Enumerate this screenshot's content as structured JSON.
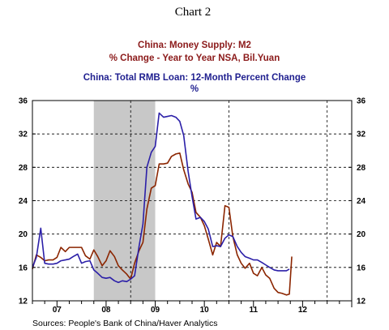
{
  "chart_data": {
    "type": "line",
    "title": "Chart 2",
    "series_titles": [
      {
        "text": "China: Money Supply: M2",
        "color": "#8b1a1a"
      },
      {
        "text": "% Change - Year to Year    NSA, Bil.Yuan",
        "color": "#8b1a1a"
      },
      {
        "text": "China: Total RMB Loan: 12-Month Percent Change",
        "color": "#1f1f8f"
      },
      {
        "text": "%",
        "color": "#1f1f8f"
      }
    ],
    "source": "Sources:  People's Bank of China/Haver Analytics",
    "x_range": [
      2006.5,
      2013.0
    ],
    "ylim": [
      12,
      36
    ],
    "y_ticks": [
      12,
      16,
      20,
      24,
      28,
      32,
      36
    ],
    "x_ticks": [
      {
        "label": "07",
        "x": 2007.0
      },
      {
        "label": "08",
        "x": 2008.0
      },
      {
        "label": "09",
        "x": 2009.0
      },
      {
        "label": "10",
        "x": 2010.0
      },
      {
        "label": "11",
        "x": 2011.0
      },
      {
        "label": "12",
        "x": 2012.0
      }
    ],
    "recession_shade": [
      2007.75,
      2009.0
    ],
    "vertical_markers": [
      2008.5,
      2010.5,
      2012.5
    ],
    "grid": true,
    "series": [
      {
        "color": "#8b2500",
        "points": [
          [
            2006.5,
            15.8
          ],
          [
            2006.58,
            17.5
          ],
          [
            2006.67,
            17.2
          ],
          [
            2006.75,
            16.8
          ],
          [
            2006.83,
            16.9
          ],
          [
            2006.92,
            16.9
          ],
          [
            2007.0,
            17.2
          ],
          [
            2007.08,
            18.4
          ],
          [
            2007.17,
            17.9
          ],
          [
            2007.25,
            18.4
          ],
          [
            2007.33,
            18.4
          ],
          [
            2007.42,
            18.4
          ],
          [
            2007.5,
            18.4
          ],
          [
            2007.58,
            17.4
          ],
          [
            2007.67,
            17.0
          ],
          [
            2007.75,
            18.1
          ],
          [
            2007.83,
            17.3
          ],
          [
            2007.92,
            16.2
          ],
          [
            2008.0,
            16.8
          ],
          [
            2008.08,
            18.0
          ],
          [
            2008.17,
            17.3
          ],
          [
            2008.25,
            16.2
          ],
          [
            2008.33,
            15.7
          ],
          [
            2008.42,
            15.2
          ],
          [
            2008.5,
            14.6
          ],
          [
            2008.58,
            16.5
          ],
          [
            2008.67,
            18.0
          ],
          [
            2008.75,
            19.0
          ],
          [
            2008.83,
            23.0
          ],
          [
            2008.92,
            25.5
          ],
          [
            2009.0,
            25.8
          ],
          [
            2009.08,
            28.4
          ],
          [
            2009.17,
            28.4
          ],
          [
            2009.25,
            28.5
          ],
          [
            2009.33,
            29.3
          ],
          [
            2009.42,
            29.6
          ],
          [
            2009.5,
            29.7
          ],
          [
            2009.58,
            27.7
          ],
          [
            2009.67,
            26.0
          ],
          [
            2009.75,
            25.0
          ],
          [
            2009.83,
            22.6
          ],
          [
            2009.92,
            22.0
          ],
          [
            2010.0,
            21.0
          ],
          [
            2010.08,
            19.4
          ],
          [
            2010.17,
            17.5
          ],
          [
            2010.25,
            19.0
          ],
          [
            2010.33,
            18.5
          ],
          [
            2010.42,
            23.4
          ],
          [
            2010.5,
            23.2
          ],
          [
            2010.58,
            19.7
          ],
          [
            2010.67,
            17.5
          ],
          [
            2010.75,
            16.5
          ],
          [
            2010.83,
            15.9
          ],
          [
            2010.92,
            16.5
          ],
          [
            2011.0,
            15.3
          ],
          [
            2011.08,
            15.0
          ],
          [
            2011.17,
            16.0
          ],
          [
            2011.25,
            15.1
          ],
          [
            2011.33,
            14.7
          ],
          [
            2011.42,
            13.5
          ],
          [
            2011.5,
            13.0
          ],
          [
            2011.58,
            12.9
          ],
          [
            2011.67,
            12.7
          ],
          [
            2011.73,
            12.8
          ],
          [
            2011.78,
            17.3
          ]
        ]
      },
      {
        "color": "#2b1fa8",
        "points": [
          [
            2006.5,
            16.0
          ],
          [
            2006.58,
            17.2
          ],
          [
            2006.67,
            20.7
          ],
          [
            2006.75,
            16.5
          ],
          [
            2006.83,
            16.4
          ],
          [
            2006.92,
            16.4
          ],
          [
            2007.0,
            16.5
          ],
          [
            2007.08,
            16.8
          ],
          [
            2007.17,
            16.9
          ],
          [
            2007.25,
            17.0
          ],
          [
            2007.33,
            17.3
          ],
          [
            2007.42,
            17.6
          ],
          [
            2007.5,
            16.5
          ],
          [
            2007.58,
            16.7
          ],
          [
            2007.67,
            16.8
          ],
          [
            2007.75,
            15.7
          ],
          [
            2007.83,
            15.3
          ],
          [
            2007.92,
            14.8
          ],
          [
            2008.0,
            14.7
          ],
          [
            2008.08,
            14.8
          ],
          [
            2008.17,
            14.4
          ],
          [
            2008.25,
            14.2
          ],
          [
            2008.33,
            14.4
          ],
          [
            2008.42,
            14.3
          ],
          [
            2008.5,
            14.6
          ],
          [
            2008.58,
            15.0
          ],
          [
            2008.67,
            18.5
          ],
          [
            2008.75,
            21.2
          ],
          [
            2008.83,
            28.0
          ],
          [
            2008.92,
            29.8
          ],
          [
            2009.0,
            30.5
          ],
          [
            2009.08,
            34.5
          ],
          [
            2009.17,
            34.0
          ],
          [
            2009.25,
            34.1
          ],
          [
            2009.33,
            34.2
          ],
          [
            2009.42,
            34.0
          ],
          [
            2009.5,
            33.5
          ],
          [
            2009.58,
            31.8
          ],
          [
            2009.67,
            27.5
          ],
          [
            2009.75,
            24.5
          ],
          [
            2009.83,
            21.8
          ],
          [
            2009.92,
            22.0
          ],
          [
            2010.0,
            21.5
          ],
          [
            2010.08,
            20.6
          ],
          [
            2010.17,
            18.5
          ],
          [
            2010.25,
            18.6
          ],
          [
            2010.33,
            18.5
          ],
          [
            2010.42,
            19.5
          ],
          [
            2010.5,
            19.9
          ],
          [
            2010.58,
            19.7
          ],
          [
            2010.67,
            18.5
          ],
          [
            2010.75,
            17.8
          ],
          [
            2010.83,
            17.3
          ],
          [
            2010.92,
            17.1
          ],
          [
            2011.0,
            16.9
          ],
          [
            2011.08,
            16.9
          ],
          [
            2011.17,
            16.6
          ],
          [
            2011.25,
            16.3
          ],
          [
            2011.33,
            16.0
          ],
          [
            2011.42,
            15.7
          ],
          [
            2011.5,
            15.6
          ],
          [
            2011.58,
            15.6
          ],
          [
            2011.67,
            15.6
          ],
          [
            2011.73,
            15.8
          ]
        ]
      }
    ]
  }
}
